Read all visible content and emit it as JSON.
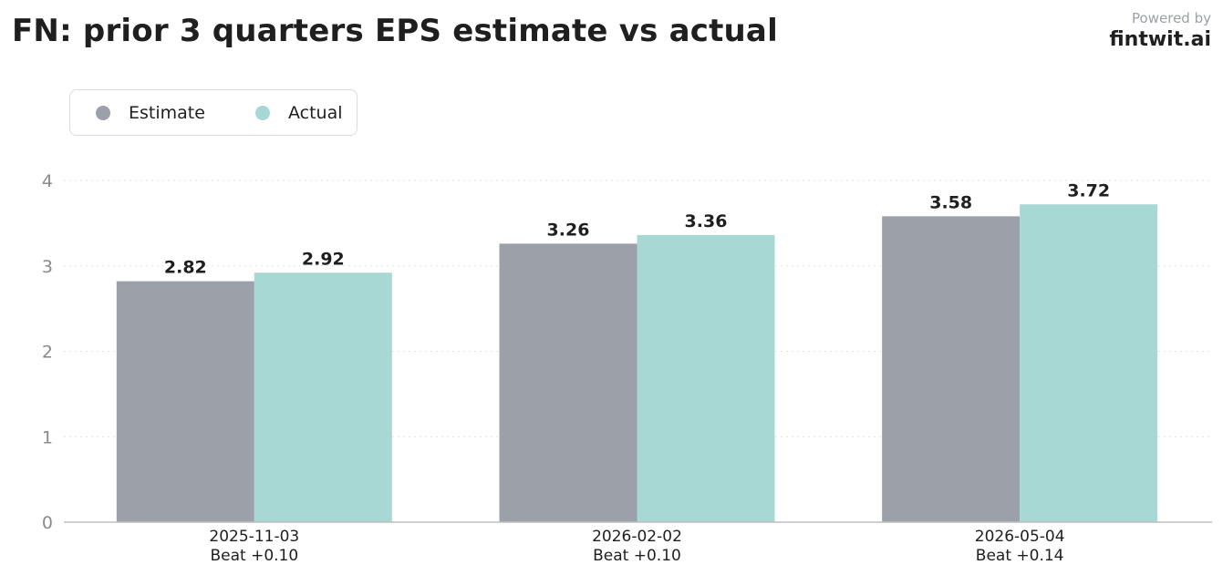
{
  "header": {
    "title": "FN: prior 3 quarters EPS estimate vs actual",
    "powered_by": "Powered by",
    "brand": "fintwit.ai"
  },
  "legend": {
    "position": "top-left",
    "items": [
      {
        "label": "Estimate",
        "color": "#9ca0a8"
      },
      {
        "label": "Actual",
        "color": "#a8d8d4"
      }
    ]
  },
  "chart_data": {
    "type": "bar",
    "title": "FN: prior 3 quarters EPS estimate vs actual",
    "xlabel": "",
    "ylabel": "",
    "categories": [
      "2025-11-03",
      "2026-02-02",
      "2026-05-04"
    ],
    "category_sublabels": [
      "Beat +0.10",
      "Beat +0.10",
      "Beat +0.14"
    ],
    "series": [
      {
        "name": "Estimate",
        "color": "#9ca0a8",
        "values": [
          2.82,
          3.26,
          3.58
        ],
        "labels": [
          "2.82",
          "3.26",
          "3.58"
        ]
      },
      {
        "name": "Actual",
        "color": "#a8d8d4",
        "values": [
          2.92,
          3.36,
          3.72
        ],
        "labels": [
          "2.92",
          "3.36",
          "3.72"
        ]
      }
    ],
    "ylim": [
      0,
      4
    ],
    "yticks": [
      "0",
      "1",
      "2",
      "3",
      "4"
    ],
    "grid": true,
    "grid_style": "dotted"
  }
}
